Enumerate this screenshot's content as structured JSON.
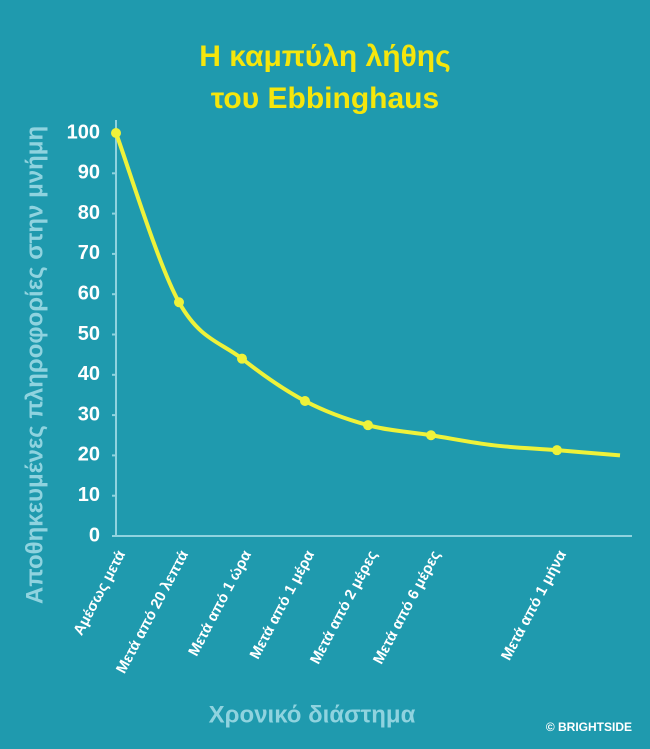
{
  "chart_data": {
    "type": "line",
    "title": [
      "Η καμπύλη λήθης",
      "του Ebbinghaus"
    ],
    "y_label": "Αποθηκευμένες πληροφορίες στην μνήμη",
    "x_label": "Χρονικό διάστημα",
    "credit": "© BRIGHTSIDE",
    "categories": [
      "Αμέσως μετά",
      "Μετά από 20 λεπτά",
      "Μετά από 1 ώρα",
      "Μετά από 1 μέρα",
      "Μετά από 2 μέρες",
      "Μετά από 6 μέρες",
      null,
      "Μετά από 1 μήνα",
      null
    ],
    "series": [
      {
        "name": "Ebbinghaus",
        "color": "#eef23a",
        "values": [
          100,
          58,
          44,
          33.5,
          27.5,
          25,
          22.5,
          21.3,
          20
        ]
      }
    ],
    "ylim": [
      0,
      100
    ],
    "yticks": [
      0,
      10,
      20,
      30,
      40,
      50,
      60,
      70,
      80,
      90,
      100
    ]
  }
}
